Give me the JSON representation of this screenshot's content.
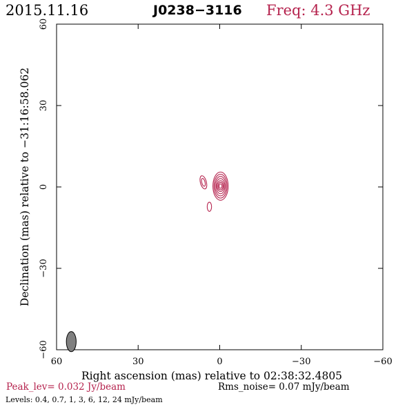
{
  "header": {
    "date": "2015.11.16",
    "source": "J0238−3116",
    "frequency": "Freq: 4.3 GHz"
  },
  "footer": {
    "peak": "Peak_lev=  0.032 Jy/beam",
    "rms": "Rms_noise= 0.07 mJy/beam",
    "levels": "Levels: 0.4, 0.7,   1,   3,   6,   12,   24 mJy/beam"
  },
  "colors": {
    "accent": "#b5224d",
    "axis": "#000000",
    "beam": "#808080"
  },
  "chart_data": {
    "type": "contour",
    "title": "J0238−3116",
    "xlabel": "Right ascension (mas) relative to 02:38:32.4805",
    "ylabel": "Declination (mas) relative to −31:16:58.062",
    "xlim": [
      60,
      -60
    ],
    "ylim": [
      -60,
      60
    ],
    "xticks": [
      60,
      30,
      0,
      -30,
      -60
    ],
    "yticks": [
      -60,
      -30,
      0,
      30,
      60
    ],
    "xtick_labels": [
      "60",
      "30",
      "0",
      "−30",
      "−60"
    ],
    "ytick_labels": [
      "−60",
      "−30",
      "0",
      "30",
      "60"
    ],
    "contour_levels_mJy_per_beam": [
      0.4,
      0.7,
      1,
      3,
      6,
      12,
      24
    ],
    "peak_Jy_per_beam": 0.032,
    "rms_noise_mJy_per_beam": 0.07,
    "components": [
      {
        "name": "core",
        "x": -0.3,
        "y": 0.3,
        "levels": 7,
        "rx": [
          2.8,
          2.4,
          2.0,
          1.6,
          1.25,
          0.9,
          0.55
        ],
        "ry": [
          5.2,
          4.4,
          3.6,
          2.8,
          2.0,
          1.4,
          0.8
        ],
        "angle": 0
      },
      {
        "name": "jet-1",
        "x": 6.0,
        "y": 1.7,
        "levels": 2,
        "rx": [
          1.1,
          0.6
        ],
        "ry": [
          2.5,
          1.5
        ],
        "angle": -15
      },
      {
        "name": "jet-2",
        "x": 3.8,
        "y": -7.3,
        "levels": 1,
        "rx": [
          0.8
        ],
        "ry": [
          1.7
        ],
        "angle": 0
      }
    ],
    "beam": {
      "x": 54.6,
      "y": -57.0,
      "major": 3.7,
      "minor": 1.8,
      "angle": 0
    }
  }
}
